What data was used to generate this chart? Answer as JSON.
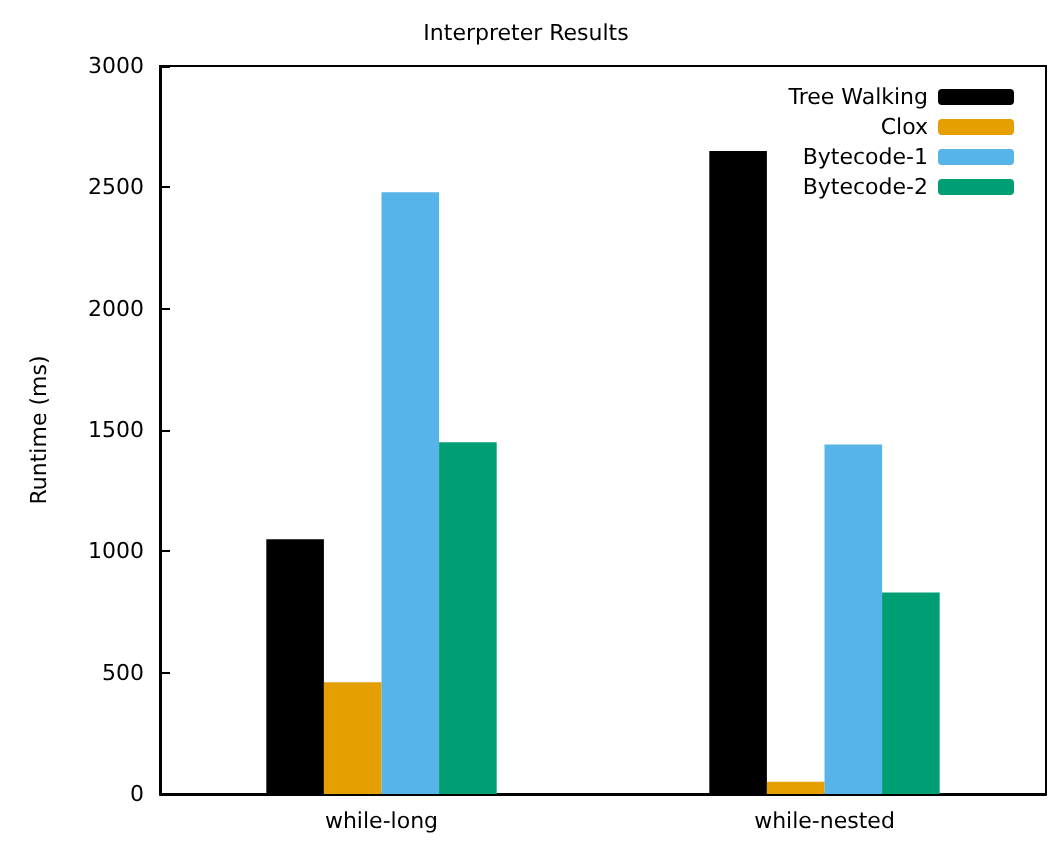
{
  "chart_data": {
    "type": "bar",
    "title": "Interpreter Results",
    "ylabel": "Runtime (ms)",
    "categories": [
      "while-long",
      "while-nested"
    ],
    "series": [
      {
        "name": "Tree Walking",
        "color": "#000000",
        "values": [
          1050,
          2650
        ]
      },
      {
        "name": "Clox",
        "color": "#e69f00",
        "values": [
          460,
          50
        ]
      },
      {
        "name": "Bytecode-1",
        "color": "#56b4e9",
        "values": [
          2480,
          1440
        ]
      },
      {
        "name": "Bytecode-2",
        "color": "#009e73",
        "values": [
          1450,
          830
        ]
      }
    ],
    "ylim": [
      0,
      3000
    ],
    "yticks": [
      0,
      500,
      1000,
      1500,
      2000,
      2500,
      3000
    ],
    "legend": "top right"
  }
}
